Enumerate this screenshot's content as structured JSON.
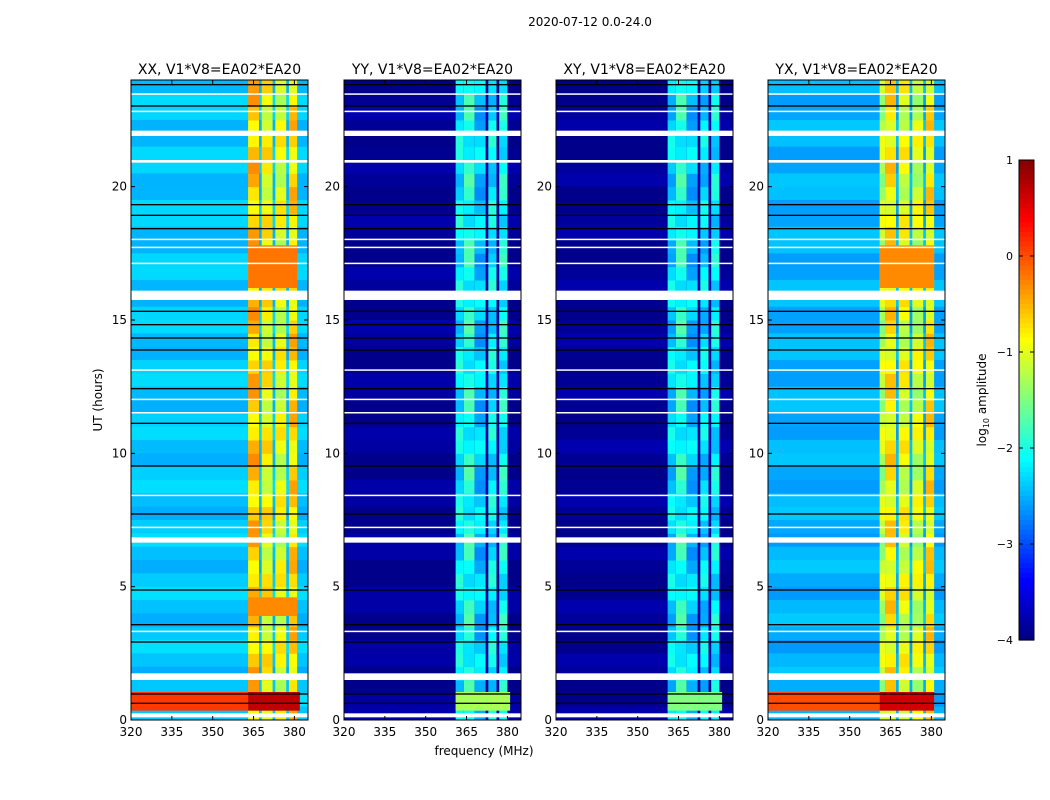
{
  "chart_data": {
    "type": "heatmap",
    "title": "2020-07-12 0.0-24.0",
    "xlabel": "frequency (MHz)",
    "ylabel": "UT (hours)",
    "xlim": [
      320,
      385
    ],
    "ylim": [
      0,
      24
    ],
    "xticks": [
      320,
      335,
      350,
      365,
      380
    ],
    "yticks": [
      0,
      5,
      10,
      15,
      20
    ],
    "colorbar": {
      "label": "log10 amplitude",
      "label_main": "log",
      "label_sub": "10",
      "label_rest": " amplitude",
      "range": [
        -4,
        1
      ],
      "ticks": [
        1,
        0,
        -1,
        -2,
        -3,
        -4
      ],
      "tick_labels": [
        "1",
        "0",
        "−1",
        "−2",
        "−3",
        "−4"
      ],
      "colormap": "jet"
    },
    "flagged_time_ranges_hours": [
      [
        0.1,
        0.25
      ],
      [
        1.5,
        1.75
      ],
      [
        6.65,
        6.85
      ],
      [
        15.75,
        16.1
      ],
      [
        20.9,
        21.0
      ],
      [
        21.9,
        22.1
      ],
      [
        22.8,
        22.85
      ],
      [
        23.45,
        23.5
      ],
      [
        7.2,
        7.25
      ],
      [
        17.1,
        17.15
      ],
      [
        17.7,
        17.75
      ],
      [
        18.0,
        18.05
      ],
      [
        11.5,
        11.55
      ],
      [
        12.0,
        12.05
      ],
      [
        13.1,
        13.15
      ],
      [
        8.4,
        8.45
      ],
      [
        3.3,
        3.35
      ]
    ],
    "dropout_time_ranges_hours": [
      [
        2.9,
        2.95
      ],
      [
        3.55,
        3.6
      ],
      [
        4.85,
        4.9
      ],
      [
        7.7,
        7.75
      ],
      [
        9.5,
        9.55
      ],
      [
        11.1,
        11.15
      ],
      [
        12.4,
        12.45
      ],
      [
        13.85,
        13.9
      ],
      [
        14.3,
        14.35
      ],
      [
        14.8,
        14.85
      ],
      [
        15.3,
        15.35
      ],
      [
        18.4,
        18.45
      ],
      [
        18.9,
        18.95
      ],
      [
        19.3,
        19.35
      ],
      [
        23.0,
        23.05
      ],
      [
        23.8,
        23.85
      ],
      [
        0.6,
        0.65
      ],
      [
        0.95,
        1.0
      ]
    ],
    "panels": [
      {
        "title": "XX, V1*V8=EA02*EA20",
        "background": -2.4,
        "bands": [
          {
            "f": [
              363,
              367
            ],
            "v": -0.6
          },
          {
            "f": [
              368,
              372
            ],
            "v": -0.9
          },
          {
            "f": [
              373,
              377
            ],
            "v": -1.0
          },
          {
            "f": [
              378,
              381
            ],
            "v": -0.7
          }
        ],
        "bright_segments": [
          {
            "t": [
              0.35,
              1.05
            ],
            "f": [
              320,
              363
            ],
            "v": 0.1
          },
          {
            "t": [
              0.35,
              1.05
            ],
            "f": [
              363,
              382
            ],
            "v": 0.7
          },
          {
            "t": [
              16.2,
              17.8
            ],
            "f": [
              363,
              381
            ],
            "v": -0.2
          },
          {
            "t": [
              3.9,
              4.6
            ],
            "f": [
              363,
              381
            ],
            "v": -0.3
          }
        ]
      },
      {
        "title": "YY, V1*V8=EA02*EA20",
        "background": -3.9,
        "bands": [
          {
            "f": [
              361,
              364
            ],
            "v": -2.2
          },
          {
            "f": [
              364,
              368
            ],
            "v": -2.0
          },
          {
            "f": [
              368,
              372
            ],
            "v": -2.4
          },
          {
            "f": [
              373,
              376
            ],
            "v": -2.2
          },
          {
            "f": [
              377,
              380
            ],
            "v": -2.1
          }
        ],
        "bright_segments": [
          {
            "t": [
              0.35,
              1.05
            ],
            "f": [
              361,
              381
            ],
            "v": -1.3
          }
        ]
      },
      {
        "title": "XY, V1*V8=EA02*EA20",
        "background": -3.9,
        "bands": [
          {
            "f": [
              361,
              364
            ],
            "v": -2.3
          },
          {
            "f": [
              364,
              368
            ],
            "v": -2.0
          },
          {
            "f": [
              368,
              372
            ],
            "v": -2.4
          },
          {
            "f": [
              373,
              376
            ],
            "v": -2.3
          },
          {
            "f": [
              377,
              380
            ],
            "v": -2.2
          }
        ],
        "bright_segments": [
          {
            "t": [
              0.35,
              1.05
            ],
            "f": [
              361,
              381
            ],
            "v": -1.5
          }
        ]
      },
      {
        "title": "YX, V1*V8=EA02*EA20",
        "background": -2.5,
        "bands": [
          {
            "f": [
              361,
              363
            ],
            "v": -1.2
          },
          {
            "f": [
              363,
              367
            ],
            "v": -0.8
          },
          {
            "f": [
              368,
              372
            ],
            "v": -1.0
          },
          {
            "f": [
              373,
              377
            ],
            "v": -1.1
          },
          {
            "f": [
              378,
              381
            ],
            "v": -0.8
          }
        ],
        "bright_segments": [
          {
            "t": [
              0.35,
              1.05
            ],
            "f": [
              320,
              361
            ],
            "v": 0.0
          },
          {
            "t": [
              0.35,
              1.05
            ],
            "f": [
              361,
              381
            ],
            "v": 0.6
          },
          {
            "t": [
              16.2,
              17.8
            ],
            "f": [
              361,
              381
            ],
            "v": -0.3
          }
        ]
      }
    ]
  }
}
